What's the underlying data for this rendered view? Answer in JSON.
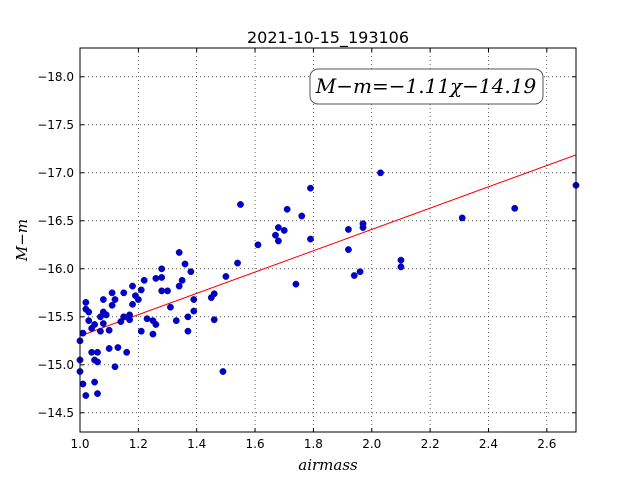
{
  "chart_data": {
    "type": "scatter",
    "title": "2021-10-15_193106",
    "xlabel": "airmass",
    "ylabel": "M−m",
    "xlim": [
      1.0,
      2.7
    ],
    "ylim": [
      -18.3,
      -14.3
    ],
    "y_inverted": true,
    "grid": true,
    "x_ticks": [
      1.0,
      1.2,
      1.4,
      1.6,
      1.8,
      2.0,
      2.2,
      2.4,
      2.6
    ],
    "y_ticks": [
      -14.5,
      -15.0,
      -15.5,
      -16.0,
      -16.5,
      -17.0,
      -17.5,
      -18.0
    ],
    "x_tick_labels": [
      "1.0",
      "1.2",
      "1.4",
      "1.6",
      "1.8",
      "2.0",
      "2.2",
      "2.4",
      "2.6"
    ],
    "y_tick_labels": [
      "−14.5",
      "−15.0",
      "−15.5",
      "−16.0",
      "−16.5",
      "−17.0",
      "−17.5",
      "−18.0"
    ],
    "annotation": "M−m=−1.11χ−14.19",
    "fit": {
      "slope": -1.11,
      "intercept": -14.19,
      "color": "#ff0000"
    },
    "point_color": "#0000cc",
    "points": [
      [
        1.0,
        -14.93
      ],
      [
        1.0,
        -15.05
      ],
      [
        1.0,
        -15.25
      ],
      [
        1.01,
        -15.33
      ],
      [
        1.01,
        -14.8
      ],
      [
        1.02,
        -14.68
      ],
      [
        1.02,
        -15.58
      ],
      [
        1.02,
        -15.65
      ],
      [
        1.03,
        -15.46
      ],
      [
        1.03,
        -15.55
      ],
      [
        1.04,
        -15.13
      ],
      [
        1.04,
        -15.38
      ],
      [
        1.05,
        -15.42
      ],
      [
        1.05,
        -15.05
      ],
      [
        1.05,
        -14.82
      ],
      [
        1.06,
        -14.7
      ],
      [
        1.06,
        -15.03
      ],
      [
        1.06,
        -15.13
      ],
      [
        1.07,
        -15.35
      ],
      [
        1.07,
        -15.5
      ],
      [
        1.08,
        -15.55
      ],
      [
        1.08,
        -15.43
      ],
      [
        1.08,
        -15.68
      ],
      [
        1.09,
        -15.52
      ],
      [
        1.1,
        -15.36
      ],
      [
        1.1,
        -15.17
      ],
      [
        1.11,
        -15.75
      ],
      [
        1.11,
        -15.62
      ],
      [
        1.12,
        -15.68
      ],
      [
        1.12,
        -14.98
      ],
      [
        1.13,
        -15.18
      ],
      [
        1.14,
        -15.45
      ],
      [
        1.15,
        -15.5
      ],
      [
        1.15,
        -15.75
      ],
      [
        1.16,
        -15.13
      ],
      [
        1.17,
        -15.47
      ],
      [
        1.17,
        -15.52
      ],
      [
        1.18,
        -15.63
      ],
      [
        1.18,
        -15.82
      ],
      [
        1.19,
        -15.72
      ],
      [
        1.2,
        -15.68
      ],
      [
        1.21,
        -15.78
      ],
      [
        1.21,
        -15.35
      ],
      [
        1.22,
        -15.88
      ],
      [
        1.23,
        -15.48
      ],
      [
        1.25,
        -15.32
      ],
      [
        1.25,
        -15.46
      ],
      [
        1.26,
        -15.42
      ],
      [
        1.26,
        -15.9
      ],
      [
        1.28,
        -15.77
      ],
      [
        1.28,
        -16.0
      ],
      [
        1.28,
        -15.91
      ],
      [
        1.3,
        -15.77
      ],
      [
        1.31,
        -15.6
      ],
      [
        1.33,
        -15.46
      ],
      [
        1.34,
        -15.82
      ],
      [
        1.34,
        -16.17
      ],
      [
        1.35,
        -15.88
      ],
      [
        1.36,
        -16.05
      ],
      [
        1.37,
        -15.5
      ],
      [
        1.37,
        -15.35
      ],
      [
        1.38,
        -15.97
      ],
      [
        1.39,
        -15.56
      ],
      [
        1.39,
        -15.68
      ],
      [
        1.45,
        -15.7
      ],
      [
        1.46,
        -15.47
      ],
      [
        1.46,
        -15.74
      ],
      [
        1.49,
        -14.93
      ],
      [
        1.5,
        -15.92
      ],
      [
        1.54,
        -16.06
      ],
      [
        1.55,
        -16.67
      ],
      [
        1.61,
        -16.25
      ],
      [
        1.67,
        -16.35
      ],
      [
        1.68,
        -16.29
      ],
      [
        1.68,
        -16.43
      ],
      [
        1.7,
        -16.4
      ],
      [
        1.71,
        -16.62
      ],
      [
        1.74,
        -15.84
      ],
      [
        1.76,
        -16.55
      ],
      [
        1.79,
        -16.84
      ],
      [
        1.79,
        -16.31
      ],
      [
        1.92,
        -16.2
      ],
      [
        1.92,
        -16.41
      ],
      [
        1.94,
        -15.93
      ],
      [
        1.96,
        -15.97
      ],
      [
        1.97,
        -16.43
      ],
      [
        1.97,
        -16.47
      ],
      [
        2.03,
        -17.0
      ],
      [
        2.1,
        -16.02
      ],
      [
        2.1,
        -16.09
      ],
      [
        2.31,
        -16.53
      ],
      [
        2.49,
        -16.63
      ],
      [
        2.7,
        -16.87
      ]
    ]
  }
}
